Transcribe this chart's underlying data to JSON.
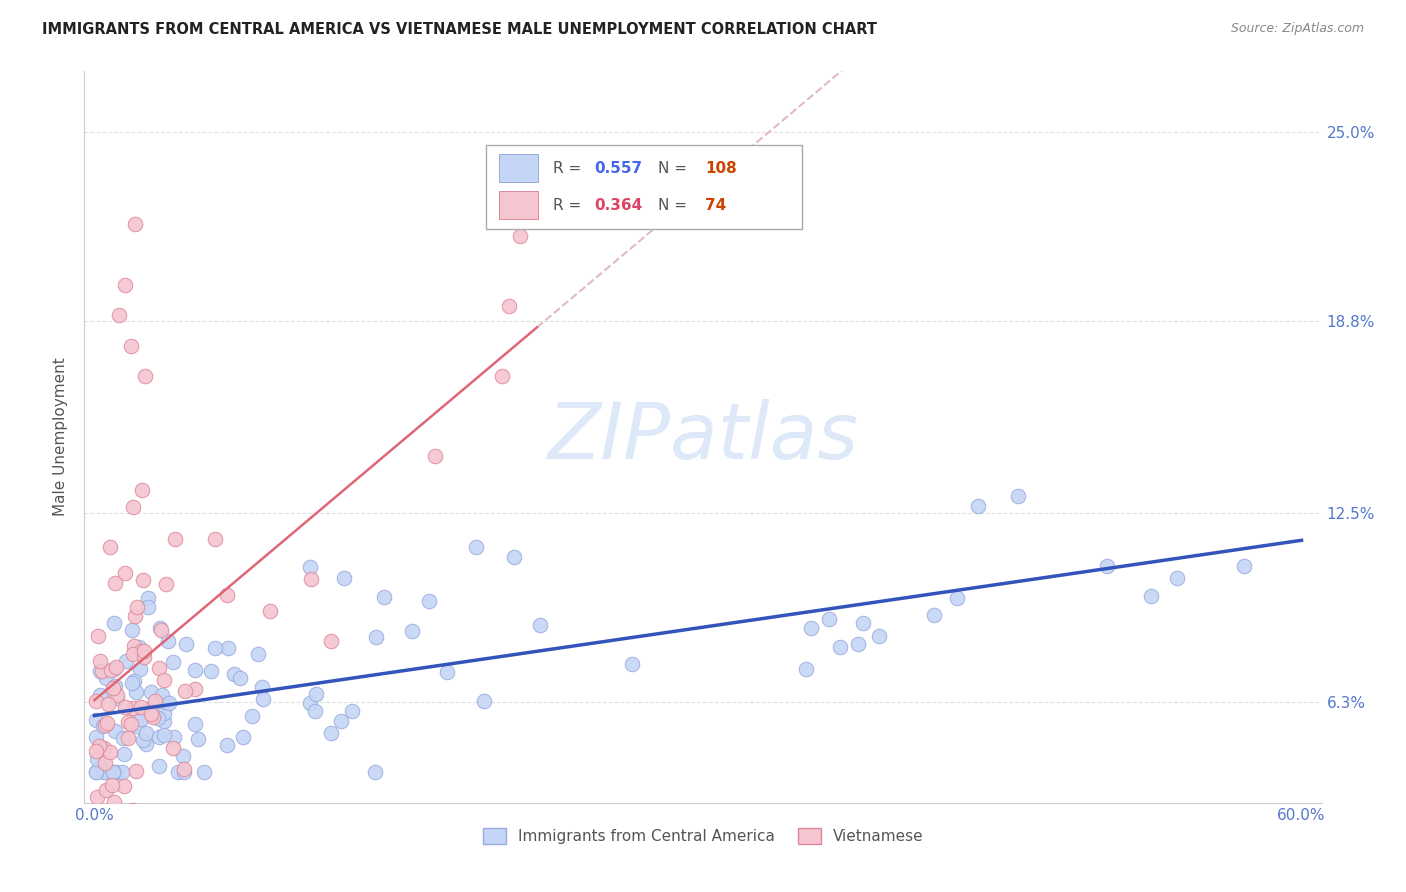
{
  "title": "IMMIGRANTS FROM CENTRAL AMERICA VS VIETNAMESE MALE UNEMPLOYMENT CORRELATION CHART",
  "source": "Source: ZipAtlas.com",
  "ylabel": "Male Unemployment",
  "xlim": [
    0.0,
    0.6
  ],
  "ylim": [
    0.03,
    0.27
  ],
  "ytick_vals": [
    0.063,
    0.125,
    0.188,
    0.25
  ],
  "ytick_labels": [
    "6.3%",
    "12.5%",
    "18.8%",
    "25.0%"
  ],
  "xtick_vals": [
    0.0,
    0.12,
    0.24,
    0.36,
    0.48,
    0.6
  ],
  "xtick_labels": [
    "0.0%",
    "",
    "",
    "",
    "",
    "60.0%"
  ],
  "color_blue_fill": "#c5d5f5",
  "color_blue_edge": "#99aadd",
  "color_pink_fill": "#f5c5d0",
  "color_pink_edge": "#dd8899",
  "color_blue_line": "#3355bb",
  "color_pink_line": "#dd6677",
  "color_pink_dash": "#ddaaaa",
  "watermark_color": "#dde8f8",
  "title_color": "#222222",
  "source_color": "#888888",
  "label_color": "#555555",
  "tick_color": "#5577cc",
  "legend_text_color": "#555555",
  "legend_blue_val_color": "#4466ee",
  "legend_pink_val_color": "#dd4466",
  "legend_n_color": "#cc4400",
  "grid_color": "#e0e0e0",
  "blue_r": "0.557",
  "blue_n": "108",
  "pink_r": "0.364",
  "pink_n": "74"
}
